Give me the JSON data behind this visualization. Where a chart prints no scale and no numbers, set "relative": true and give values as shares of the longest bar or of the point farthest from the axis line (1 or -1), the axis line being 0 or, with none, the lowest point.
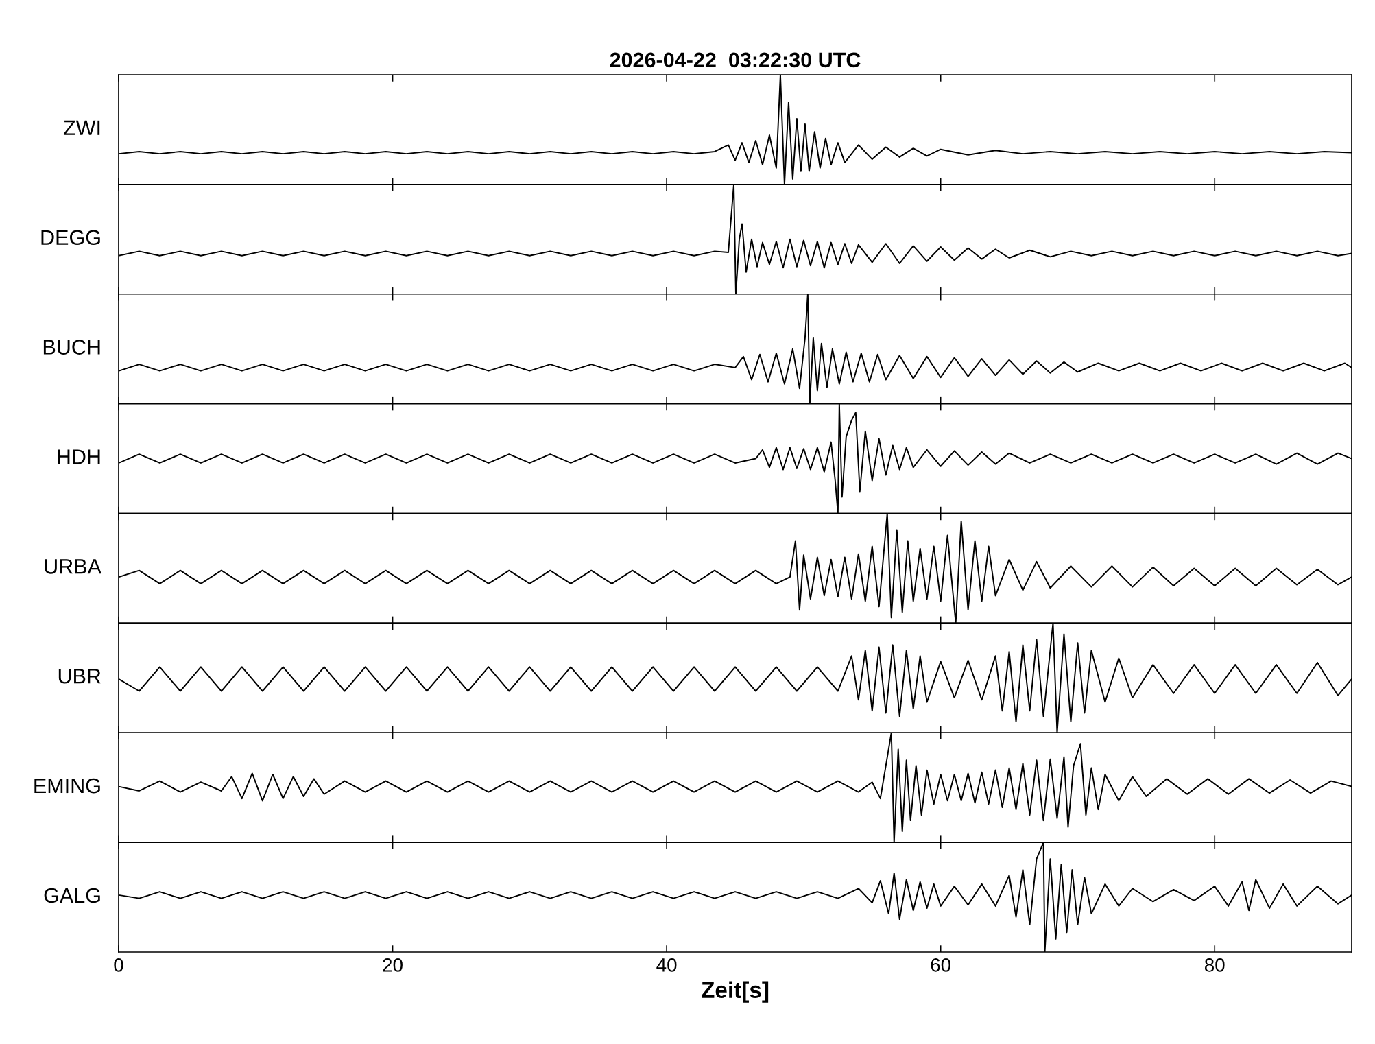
{
  "chart_data": [
    {
      "type": "line",
      "title": "2026-04-22  03:22:30 UTC",
      "ylabel": "ZWI",
      "relative": true,
      "xlim": [
        0,
        90
      ],
      "xticks": [
        0,
        20,
        40,
        60,
        80
      ],
      "tick_labels": false,
      "series": [
        {
          "color": "#000000",
          "x": [
            0,
            1.5,
            3,
            4.5,
            6,
            7.5,
            9,
            10.5,
            12,
            13.5,
            15,
            16.5,
            18,
            19.5,
            21,
            22.5,
            24,
            25.5,
            27,
            28.5,
            30,
            31.5,
            33,
            34.5,
            36,
            37.5,
            39,
            40.5,
            42,
            43.5,
            44.5,
            45,
            45.5,
            46,
            46.5,
            47,
            47.5,
            48,
            48.3,
            48.6,
            48.9,
            49.2,
            49.5,
            49.8,
            50.1,
            50.4,
            50.8,
            51.2,
            51.6,
            52,
            52.5,
            53,
            54,
            55,
            56,
            57,
            58,
            59,
            60,
            62,
            64,
            66,
            68,
            70,
            72,
            74,
            76,
            78,
            80,
            82,
            84,
            86,
            88,
            90
          ],
          "values": [
            0.28,
            0.3,
            0.28,
            0.3,
            0.28,
            0.3,
            0.28,
            0.3,
            0.28,
            0.3,
            0.28,
            0.3,
            0.28,
            0.3,
            0.28,
            0.3,
            0.28,
            0.3,
            0.28,
            0.3,
            0.28,
            0.3,
            0.28,
            0.3,
            0.28,
            0.3,
            0.28,
            0.3,
            0.28,
            0.3,
            0.36,
            0.22,
            0.38,
            0.2,
            0.4,
            0.18,
            0.45,
            0.15,
            1.0,
            0.0,
            0.75,
            0.05,
            0.6,
            0.12,
            0.55,
            0.12,
            0.48,
            0.15,
            0.42,
            0.18,
            0.38,
            0.2,
            0.36,
            0.23,
            0.34,
            0.25,
            0.33,
            0.26,
            0.32,
            0.27,
            0.31,
            0.28,
            0.3,
            0.28,
            0.3,
            0.28,
            0.3,
            0.28,
            0.3,
            0.28,
            0.3,
            0.28,
            0.3,
            0.29
          ]
        }
      ]
    },
    {
      "type": "line",
      "ylabel": "DEGG",
      "relative": true,
      "xlim": [
        0,
        90
      ],
      "xticks": [
        0,
        20,
        40,
        60,
        80
      ],
      "tick_labels": false,
      "series": [
        {
          "color": "#000000",
          "x": [
            0,
            1.5,
            3,
            4.5,
            6,
            7.5,
            9,
            10.5,
            12,
            13.5,
            15,
            16.5,
            18,
            19.5,
            21,
            22.5,
            24,
            25.5,
            27,
            28.5,
            30,
            31.5,
            33,
            34.5,
            36,
            37.5,
            39,
            40.5,
            42,
            43.5,
            44.5,
            44.9,
            45.05,
            45.3,
            45.5,
            45.8,
            46.2,
            46.6,
            47,
            47.5,
            48,
            48.5,
            49,
            49.5,
            50,
            50.5,
            51,
            51.5,
            52,
            52.5,
            53,
            53.5,
            54,
            55,
            56,
            57,
            58,
            59,
            60,
            61,
            62,
            63,
            64,
            65,
            66.5,
            68,
            69.5,
            71,
            72.5,
            74,
            75.5,
            77,
            78.5,
            80,
            81.5,
            83,
            84.5,
            86,
            87.5,
            89,
            90
          ],
          "values": [
            0.35,
            0.39,
            0.35,
            0.39,
            0.35,
            0.39,
            0.35,
            0.39,
            0.35,
            0.39,
            0.35,
            0.39,
            0.35,
            0.39,
            0.35,
            0.39,
            0.35,
            0.39,
            0.35,
            0.39,
            0.35,
            0.39,
            0.35,
            0.39,
            0.35,
            0.39,
            0.35,
            0.39,
            0.35,
            0.39,
            0.38,
            1.0,
            0.0,
            0.5,
            0.64,
            0.2,
            0.5,
            0.25,
            0.47,
            0.27,
            0.48,
            0.24,
            0.5,
            0.25,
            0.49,
            0.26,
            0.48,
            0.24,
            0.47,
            0.27,
            0.46,
            0.28,
            0.45,
            0.29,
            0.46,
            0.28,
            0.44,
            0.3,
            0.43,
            0.31,
            0.42,
            0.32,
            0.41,
            0.33,
            0.4,
            0.34,
            0.39,
            0.35,
            0.39,
            0.35,
            0.39,
            0.35,
            0.39,
            0.35,
            0.39,
            0.35,
            0.39,
            0.35,
            0.39,
            0.35,
            0.37
          ]
        }
      ]
    },
    {
      "type": "line",
      "ylabel": "BUCH",
      "relative": true,
      "xlim": [
        0,
        90
      ],
      "xticks": [
        0,
        20,
        40,
        60,
        80
      ],
      "tick_labels": false,
      "series": [
        {
          "color": "#000000",
          "x": [
            0,
            1.5,
            3,
            4.5,
            6,
            7.5,
            9,
            10.5,
            12,
            13.5,
            15,
            16.5,
            18,
            19.5,
            21,
            22.5,
            24,
            25.5,
            27,
            28.5,
            30,
            31.5,
            33,
            34.5,
            36,
            37.5,
            39,
            40.5,
            42,
            43.5,
            45,
            45.6,
            46.2,
            46.8,
            47.4,
            48,
            48.6,
            49.2,
            49.7,
            50.1,
            50.3,
            50.45,
            50.7,
            51,
            51.3,
            51.7,
            52.1,
            52.6,
            53.1,
            53.6,
            54.2,
            54.8,
            55.4,
            56,
            57,
            58,
            59,
            60,
            61,
            62,
            63,
            64,
            65,
            66,
            67,
            68,
            69,
            70,
            71.5,
            73,
            74.5,
            76,
            77.5,
            79,
            80.5,
            82,
            83.5,
            85,
            86.5,
            88,
            89.5,
            90
          ],
          "values": [
            0.3,
            0.36,
            0.3,
            0.36,
            0.3,
            0.36,
            0.3,
            0.36,
            0.3,
            0.36,
            0.3,
            0.36,
            0.3,
            0.36,
            0.3,
            0.36,
            0.3,
            0.36,
            0.3,
            0.36,
            0.3,
            0.36,
            0.3,
            0.36,
            0.3,
            0.36,
            0.3,
            0.36,
            0.3,
            0.36,
            0.33,
            0.43,
            0.22,
            0.45,
            0.2,
            0.46,
            0.18,
            0.5,
            0.14,
            0.6,
            1.0,
            0.0,
            0.6,
            0.12,
            0.55,
            0.15,
            0.5,
            0.18,
            0.47,
            0.2,
            0.46,
            0.2,
            0.45,
            0.22,
            0.44,
            0.23,
            0.43,
            0.24,
            0.42,
            0.25,
            0.41,
            0.26,
            0.4,
            0.27,
            0.39,
            0.28,
            0.38,
            0.29,
            0.37,
            0.3,
            0.37,
            0.3,
            0.37,
            0.3,
            0.37,
            0.3,
            0.37,
            0.3,
            0.37,
            0.3,
            0.37,
            0.33
          ]
        }
      ]
    },
    {
      "type": "line",
      "ylabel": "HDH",
      "relative": true,
      "xlim": [
        0,
        90
      ],
      "xticks": [
        0,
        20,
        40,
        60,
        80
      ],
      "tick_labels": false,
      "series": [
        {
          "color": "#000000",
          "x": [
            0,
            1.5,
            3,
            4.5,
            6,
            7.5,
            9,
            10.5,
            12,
            13.5,
            15,
            16.5,
            18,
            19.5,
            21,
            22.5,
            24,
            25.5,
            27,
            28.5,
            30,
            31.5,
            33,
            34.5,
            36,
            37.5,
            39,
            40.5,
            42,
            43.5,
            45,
            46.5,
            47,
            47.5,
            48,
            48.5,
            49,
            49.5,
            50,
            50.5,
            51,
            51.5,
            52,
            52.3,
            52.5,
            52.6,
            52.8,
            53.1,
            53.5,
            53.8,
            54.1,
            54.5,
            55,
            55.5,
            56,
            56.5,
            57,
            57.5,
            58,
            59,
            60,
            61,
            62,
            63,
            64,
            65,
            66.5,
            68,
            69.5,
            71,
            72.5,
            74,
            75.5,
            77,
            78.5,
            80,
            81.5,
            83,
            84.5,
            86,
            87.5,
            89,
            90
          ],
          "values": [
            0.46,
            0.54,
            0.46,
            0.54,
            0.46,
            0.54,
            0.46,
            0.54,
            0.46,
            0.54,
            0.46,
            0.54,
            0.46,
            0.54,
            0.46,
            0.54,
            0.46,
            0.54,
            0.46,
            0.54,
            0.46,
            0.54,
            0.46,
            0.54,
            0.46,
            0.54,
            0.46,
            0.54,
            0.46,
            0.54,
            0.46,
            0.5,
            0.58,
            0.42,
            0.6,
            0.4,
            0.6,
            0.41,
            0.59,
            0.4,
            0.6,
            0.38,
            0.65,
            0.3,
            0.0,
            1.0,
            0.15,
            0.7,
            0.85,
            0.92,
            0.2,
            0.75,
            0.3,
            0.68,
            0.35,
            0.62,
            0.4,
            0.6,
            0.42,
            0.58,
            0.43,
            0.57,
            0.44,
            0.56,
            0.45,
            0.55,
            0.46,
            0.54,
            0.46,
            0.54,
            0.46,
            0.54,
            0.46,
            0.54,
            0.46,
            0.54,
            0.46,
            0.54,
            0.45,
            0.55,
            0.45,
            0.55,
            0.5
          ]
        }
      ]
    },
    {
      "type": "line",
      "ylabel": "URBA",
      "relative": true,
      "xlim": [
        0,
        90
      ],
      "xticks": [
        0,
        20,
        40,
        60,
        80
      ],
      "tick_labels": false,
      "series": [
        {
          "color": "#000000",
          "x": [
            0,
            1.5,
            3,
            4.5,
            6,
            7.5,
            9,
            10.5,
            12,
            13.5,
            15,
            16.5,
            18,
            19.5,
            21,
            22.5,
            24,
            25.5,
            27,
            28.5,
            30,
            31.5,
            33,
            34.5,
            36,
            37.5,
            39,
            40.5,
            42,
            43.5,
            45,
            46.5,
            48,
            49,
            49.4,
            49.7,
            50,
            50.5,
            51,
            51.5,
            52,
            52.5,
            53,
            53.5,
            54,
            54.5,
            55,
            55.5,
            56.1,
            56.4,
            56.8,
            57.2,
            57.6,
            58,
            58.5,
            59,
            59.5,
            60,
            60.5,
            61.1,
            61.5,
            62,
            62.5,
            63,
            63.5,
            64,
            65,
            66,
            67,
            68,
            69.5,
            71,
            72.5,
            74,
            75.5,
            77,
            78.5,
            80,
            81.5,
            83,
            84.5,
            86,
            87.5,
            89,
            90
          ],
          "values": [
            0.42,
            0.48,
            0.36,
            0.48,
            0.36,
            0.48,
            0.36,
            0.48,
            0.36,
            0.48,
            0.36,
            0.48,
            0.36,
            0.48,
            0.36,
            0.48,
            0.36,
            0.48,
            0.36,
            0.48,
            0.36,
            0.48,
            0.36,
            0.48,
            0.36,
            0.48,
            0.36,
            0.48,
            0.36,
            0.48,
            0.36,
            0.48,
            0.36,
            0.42,
            0.75,
            0.12,
            0.62,
            0.22,
            0.6,
            0.25,
            0.58,
            0.24,
            0.6,
            0.22,
            0.63,
            0.2,
            0.7,
            0.15,
            1.0,
            0.05,
            0.85,
            0.1,
            0.75,
            0.2,
            0.68,
            0.22,
            0.7,
            0.2,
            0.8,
            0.0,
            0.93,
            0.12,
            0.75,
            0.2,
            0.7,
            0.25,
            0.58,
            0.3,
            0.56,
            0.32,
            0.52,
            0.33,
            0.52,
            0.33,
            0.51,
            0.34,
            0.5,
            0.34,
            0.5,
            0.34,
            0.5,
            0.35,
            0.49,
            0.35,
            0.42
          ]
        }
      ]
    },
    {
      "type": "line",
      "ylabel": "UBR",
      "relative": true,
      "xlim": [
        0,
        90
      ],
      "xticks": [
        0,
        20,
        40,
        60,
        80
      ],
      "tick_labels": false,
      "series": [
        {
          "color": "#000000",
          "x": [
            0,
            1.5,
            3,
            4.5,
            6,
            7.5,
            9,
            10.5,
            12,
            13.5,
            15,
            16.5,
            18,
            19.5,
            21,
            22.5,
            24,
            25.5,
            27,
            28.5,
            30,
            31.5,
            33,
            34.5,
            36,
            37.5,
            39,
            40.5,
            42,
            43.5,
            45,
            46.5,
            48,
            49.5,
            51,
            52.5,
            53.5,
            54,
            54.5,
            55,
            55.5,
            56,
            56.5,
            57,
            57.5,
            58,
            58.5,
            59,
            60,
            61,
            62,
            63,
            64,
            64.5,
            65,
            65.5,
            66,
            66.5,
            67,
            67.5,
            68.2,
            68.5,
            69,
            69.5,
            70,
            70.5,
            71,
            72,
            73,
            74,
            75.5,
            77,
            78.5,
            80,
            81.5,
            83,
            84.5,
            86,
            87.5,
            89,
            90
          ],
          "values": [
            0.49,
            0.38,
            0.6,
            0.38,
            0.6,
            0.38,
            0.6,
            0.38,
            0.6,
            0.38,
            0.6,
            0.38,
            0.6,
            0.38,
            0.6,
            0.38,
            0.6,
            0.38,
            0.6,
            0.38,
            0.6,
            0.38,
            0.6,
            0.38,
            0.6,
            0.38,
            0.6,
            0.38,
            0.6,
            0.38,
            0.6,
            0.38,
            0.6,
            0.38,
            0.6,
            0.38,
            0.7,
            0.3,
            0.75,
            0.2,
            0.78,
            0.18,
            0.8,
            0.15,
            0.75,
            0.22,
            0.7,
            0.28,
            0.65,
            0.32,
            0.66,
            0.3,
            0.7,
            0.2,
            0.74,
            0.1,
            0.8,
            0.2,
            0.85,
            0.15,
            1.0,
            0.0,
            0.9,
            0.1,
            0.82,
            0.18,
            0.75,
            0.28,
            0.68,
            0.32,
            0.62,
            0.36,
            0.62,
            0.36,
            0.62,
            0.36,
            0.62,
            0.36,
            0.64,
            0.34,
            0.49
          ]
        }
      ]
    },
    {
      "type": "line",
      "ylabel": "EMING",
      "relative": true,
      "xlim": [
        0,
        90
      ],
      "xticks": [
        0,
        20,
        40,
        60,
        80
      ],
      "tick_labels": false,
      "series": [
        {
          "color": "#000000",
          "x": [
            0,
            1.5,
            3,
            4.5,
            6,
            7.5,
            8.25,
            9,
            9.75,
            10.5,
            11.25,
            12,
            12.75,
            13.5,
            14.25,
            15,
            16.5,
            18,
            19.5,
            21,
            22.5,
            24,
            25.5,
            27,
            28.5,
            30,
            31.5,
            33,
            34.5,
            36,
            37.5,
            39,
            40.5,
            42,
            43.5,
            45,
            46.5,
            48,
            49.5,
            51,
            52.5,
            54,
            55,
            55.6,
            56,
            56.4,
            56.6,
            56.9,
            57.2,
            57.5,
            57.8,
            58.2,
            58.6,
            59,
            59.5,
            60,
            60.5,
            61,
            61.5,
            62,
            62.5,
            63,
            63.5,
            64,
            64.5,
            65,
            65.5,
            66,
            66.5,
            67,
            67.5,
            68,
            68.5,
            69,
            69.3,
            69.7,
            70.2,
            70.6,
            71,
            71.5,
            72,
            73,
            74,
            75,
            76.5,
            78,
            79.5,
            81,
            82.5,
            84,
            85.5,
            87,
            88.5,
            90
          ],
          "values": [
            0.51,
            0.47,
            0.56,
            0.46,
            0.55,
            0.47,
            0.6,
            0.4,
            0.63,
            0.38,
            0.62,
            0.4,
            0.6,
            0.42,
            0.58,
            0.44,
            0.56,
            0.46,
            0.56,
            0.46,
            0.56,
            0.46,
            0.56,
            0.46,
            0.56,
            0.46,
            0.56,
            0.46,
            0.56,
            0.46,
            0.56,
            0.46,
            0.56,
            0.46,
            0.56,
            0.46,
            0.56,
            0.46,
            0.56,
            0.46,
            0.56,
            0.46,
            0.55,
            0.4,
            0.7,
            1.0,
            0.0,
            0.85,
            0.1,
            0.75,
            0.2,
            0.7,
            0.25,
            0.66,
            0.35,
            0.62,
            0.38,
            0.62,
            0.38,
            0.63,
            0.36,
            0.64,
            0.35,
            0.66,
            0.32,
            0.68,
            0.3,
            0.72,
            0.25,
            0.75,
            0.2,
            0.76,
            0.22,
            0.78,
            0.14,
            0.7,
            0.9,
            0.25,
            0.68,
            0.3,
            0.62,
            0.38,
            0.6,
            0.42,
            0.58,
            0.44,
            0.58,
            0.44,
            0.58,
            0.45,
            0.57,
            0.45,
            0.56,
            0.51
          ]
        }
      ]
    },
    {
      "type": "line",
      "ylabel": "GALG",
      "xlabel": "Zeit[s]",
      "relative": true,
      "xlim": [
        0,
        90
      ],
      "xticks": [
        0,
        20,
        40,
        60,
        80
      ],
      "tick_labels": "x",
      "series": [
        {
          "color": "#000000",
          "x": [
            0,
            1.5,
            3,
            4.5,
            6,
            7.5,
            9,
            10.5,
            12,
            13.5,
            15,
            16.5,
            18,
            19.5,
            21,
            22.5,
            24,
            25.5,
            27,
            28.5,
            30,
            31.5,
            33,
            34.5,
            36,
            37.5,
            39,
            40.5,
            42,
            43.5,
            45,
            46.5,
            48,
            49.5,
            51,
            52.5,
            54,
            55,
            55.6,
            56.2,
            56.6,
            57,
            57.5,
            58,
            58.5,
            59,
            59.5,
            60,
            61,
            62,
            63,
            64,
            65,
            65.5,
            66,
            66.5,
            67,
            67.5,
            67.6,
            68,
            68.4,
            68.8,
            69.2,
            69.6,
            70,
            70.5,
            71,
            72,
            73,
            74,
            75.5,
            77,
            78.5,
            80,
            81,
            82,
            82.5,
            83,
            84,
            85,
            86,
            87.5,
            89,
            90
          ],
          "values": [
            0.52,
            0.49,
            0.55,
            0.49,
            0.55,
            0.49,
            0.55,
            0.49,
            0.55,
            0.49,
            0.55,
            0.49,
            0.55,
            0.49,
            0.55,
            0.49,
            0.55,
            0.49,
            0.55,
            0.49,
            0.55,
            0.49,
            0.55,
            0.49,
            0.55,
            0.49,
            0.55,
            0.49,
            0.55,
            0.49,
            0.55,
            0.49,
            0.55,
            0.49,
            0.55,
            0.49,
            0.58,
            0.45,
            0.65,
            0.35,
            0.72,
            0.3,
            0.66,
            0.38,
            0.64,
            0.4,
            0.62,
            0.42,
            0.6,
            0.43,
            0.62,
            0.42,
            0.7,
            0.32,
            0.75,
            0.25,
            0.85,
            1.0,
            0.0,
            0.85,
            0.12,
            0.8,
            0.18,
            0.75,
            0.25,
            0.68,
            0.35,
            0.62,
            0.42,
            0.58,
            0.46,
            0.57,
            0.47,
            0.6,
            0.42,
            0.64,
            0.38,
            0.66,
            0.4,
            0.62,
            0.42,
            0.6,
            0.44,
            0.52
          ]
        }
      ]
    }
  ]
}
